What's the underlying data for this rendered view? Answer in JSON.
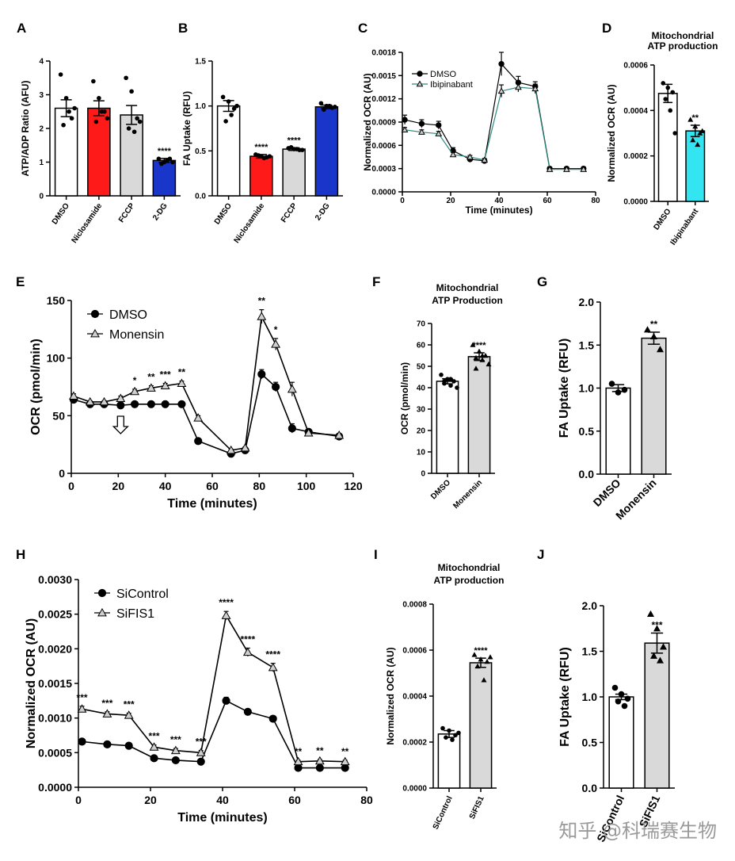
{
  "panel_labels": [
    "A",
    "B",
    "C",
    "D",
    "E",
    "F",
    "G",
    "H",
    "I",
    "J"
  ],
  "watermark": "知乎 @科瑞赛生物",
  "colors": {
    "red": "#ff1a1a",
    "gray": "#d9d9d9",
    "blue": "#1a35c9",
    "cyan": "#33e5f0",
    "teal": "#2a8a80"
  },
  "chart_data": [
    {
      "id": "A",
      "type": "bar",
      "title": "",
      "xlabel": "",
      "ylabel": "ATP/ADP Ratio (AFU)",
      "ylim": [
        0,
        4
      ],
      "yticks": [
        "0",
        "1",
        "2",
        "3",
        "4"
      ],
      "categories": [
        "DMSO",
        "Niclosamide",
        "FCCP",
        "2-DG"
      ],
      "values": [
        2.6,
        2.6,
        2.4,
        1.05
      ],
      "errors": [
        0.25,
        0.22,
        0.28,
        0.06
      ],
      "fills": [
        "#ffffff",
        "#ff1a1a",
        "#d9d9d9",
        "#1a35c9"
      ],
      "annotations": [
        "",
        "",
        "",
        "****"
      ],
      "points": [
        [
          3.6,
          2.9,
          2.3,
          2.1,
          2.5,
          2.6
        ],
        [
          3.4,
          2.9,
          2.5,
          2.2,
          2.5,
          2.3
        ],
        [
          3.5,
          3.1,
          2.3,
          2.0,
          1.9,
          2.2
        ],
        [
          1.1,
          1.0,
          1.1,
          0.95,
          1.05,
          1.0
        ]
      ]
    },
    {
      "id": "B",
      "type": "bar",
      "title": "",
      "xlabel": "",
      "ylabel": "FA Uptake (RFU)",
      "ylim": [
        0,
        1.5
      ],
      "yticks": [
        "0.0",
        "0.5",
        "1.0",
        "1.5"
      ],
      "categories": [
        "DMSO",
        "Niclosamide",
        "FCCP",
        "2-DG"
      ],
      "values": [
        1.0,
        0.44,
        0.52,
        0.99
      ],
      "errors": [
        0.06,
        0.02,
        0.015,
        0.02
      ],
      "fills": [
        "#ffffff",
        "#ff1a1a",
        "#d9d9d9",
        "#1a35c9"
      ],
      "annotations": [
        "",
        "****",
        "****",
        ""
      ],
      "points": [
        [
          1.1,
          1.05,
          0.97,
          0.83,
          0.9,
          1.0
        ],
        [
          0.46,
          0.44,
          0.43,
          0.45,
          0.42,
          0.44
        ],
        [
          0.53,
          0.52,
          0.51,
          0.54,
          0.52,
          0.51
        ],
        [
          1.03,
          1.0,
          0.98,
          0.96,
          1.0,
          0.99
        ]
      ]
    },
    {
      "id": "C",
      "type": "line",
      "title": "",
      "xlabel": "Time (minutes)",
      "ylabel": "Normalized OCR (AU)",
      "xlim": [
        0,
        80
      ],
      "ylim": [
        0,
        0.0018
      ],
      "xticks": [
        "0",
        "20",
        "40",
        "60",
        "80"
      ],
      "yticks": [
        "0.0000",
        "0.0003",
        "0.0006",
        "0.0009",
        "0.0012",
        "0.0015",
        "0.0018"
      ],
      "legend_position": "top-left",
      "series": [
        {
          "name": "DMSO",
          "marker": "circle",
          "x": [
            1,
            8,
            15,
            21,
            28,
            34,
            41,
            48,
            55,
            61,
            68,
            75
          ],
          "y": [
            0.00093,
            0.00088,
            0.00086,
            0.00053,
            0.00042,
            0.0004,
            0.00165,
            0.00141,
            0.00136,
            0.0003,
            0.0003,
            0.0003
          ],
          "err": [
            6e-05,
            5e-05,
            5e-05,
            4e-05,
            2e-05,
            2e-05,
            0.00015,
            8e-05,
            6e-05,
            2e-05,
            2e-05,
            2e-05
          ]
        },
        {
          "name": "Ibipinabant",
          "marker": "triangle",
          "x": [
            1,
            8,
            15,
            21,
            28,
            34,
            41,
            48,
            55,
            61,
            68,
            75
          ],
          "y": [
            0.0008,
            0.00077,
            0.00075,
            0.00048,
            0.00045,
            0.00041,
            0.0013,
            0.00135,
            0.00133,
            0.00029,
            0.00029,
            0.00029
          ],
          "err": [
            3e-05,
            3e-05,
            3e-05,
            3e-05,
            2e-05,
            2e-05,
            8e-05,
            6e-05,
            6e-05,
            2e-05,
            2e-05,
            2e-05
          ]
        }
      ]
    },
    {
      "id": "D",
      "type": "bar",
      "title": "Mitochondrial ATP production",
      "xlabel": "",
      "ylabel": "Normalized OCR (AU)",
      "ylim": [
        0,
        0.0006
      ],
      "yticks": [
        "0.0000",
        "0.0002",
        "0.0004",
        "0.0006"
      ],
      "categories": [
        "DMSO",
        "Ibipinabant"
      ],
      "values": [
        0.000475,
        0.00031
      ],
      "errors": [
        4e-05,
        2.5e-05
      ],
      "fills": [
        "#ffffff",
        "#33e5f0"
      ],
      "annotations": [
        "",
        "**"
      ],
      "points": [
        [
          0.00052,
          0.0005,
          0.00048,
          0.00045,
          0.0004,
          0.0003
        ],
        [
          0.00036,
          0.00033,
          0.0003,
          0.00027,
          0.00025,
          0.00031
        ]
      ]
    },
    {
      "id": "E",
      "type": "line",
      "title": "",
      "xlabel": "Time (minutes)",
      "ylabel": "OCR (pmol/min)",
      "xlim": [
        0,
        120
      ],
      "ylim": [
        0,
        150
      ],
      "xticks": [
        "0",
        "20",
        "40",
        "60",
        "80",
        "100",
        "120"
      ],
      "yticks": [
        "0",
        "50",
        "100",
        "150"
      ],
      "legend_position": "top-left",
      "arrow_at_x": 21,
      "series": [
        {
          "name": "DMSO",
          "marker": "circle",
          "x": [
            1,
            8,
            14,
            21,
            27,
            34,
            40,
            47,
            54,
            68,
            74,
            81,
            87,
            94,
            101,
            114
          ],
          "y": [
            64,
            60,
            60,
            59,
            60,
            60,
            60,
            60,
            28,
            17,
            20,
            86,
            75,
            39,
            36,
            32
          ],
          "err": [
            2,
            1,
            1,
            1,
            1,
            1,
            1,
            1,
            1,
            1,
            1,
            4,
            4,
            4,
            1,
            1
          ]
        },
        {
          "name": "Monensin",
          "marker": "triangle",
          "x": [
            1,
            8,
            14,
            21,
            27,
            34,
            40,
            47,
            54,
            68,
            74,
            81,
            87,
            94,
            101,
            114
          ],
          "y": [
            67,
            62,
            62,
            65,
            71,
            74,
            76,
            78,
            48,
            20,
            22,
            136,
            112,
            73,
            35,
            33
          ],
          "err": [
            2,
            1,
            1,
            2,
            2,
            2,
            2,
            2,
            2,
            1,
            1,
            6,
            5,
            6,
            1,
            1
          ]
        }
      ],
      "annotations": [
        {
          "x": 27,
          "text": "*"
        },
        {
          "x": 34,
          "text": "**"
        },
        {
          "x": 40,
          "text": "***"
        },
        {
          "x": 47,
          "text": "**"
        },
        {
          "x": 81,
          "text": "**"
        },
        {
          "x": 87,
          "text": "*"
        }
      ]
    },
    {
      "id": "F",
      "type": "bar",
      "title": "Mitochondrial ATP Production",
      "xlabel": "",
      "ylabel": "OCR (pmol/min)",
      "ylim": [
        0,
        70
      ],
      "yticks": [
        "0",
        "10",
        "20",
        "30",
        "40",
        "50",
        "60",
        "70"
      ],
      "categories": [
        "DMSO",
        "Monensin"
      ],
      "values": [
        43,
        54.5
      ],
      "errors": [
        1.2,
        1.8
      ],
      "fills": [
        "#ffffff",
        "#d9d9d9"
      ],
      "annotations": [
        "",
        "****"
      ],
      "points": [
        [
          46,
          44,
          43,
          42,
          41,
          40,
          43,
          44
        ],
        [
          60,
          57,
          55,
          54,
          53,
          51,
          49,
          55
        ]
      ]
    },
    {
      "id": "G",
      "type": "bar",
      "title": "",
      "xlabel": "",
      "ylabel": "FA Uptake (RFU)",
      "ylim": [
        0,
        2.0
      ],
      "yticks": [
        "0.0",
        "0.5",
        "1.0",
        "1.5",
        "2.0"
      ],
      "categories": [
        "DMSO",
        "Monensin"
      ],
      "values": [
        1.0,
        1.58
      ],
      "errors": [
        0.04,
        0.07
      ],
      "fills": [
        "#ffffff",
        "#d9d9d9"
      ],
      "annotations": [
        "",
        "**"
      ],
      "points": [
        [
          1.05,
          0.95,
          0.98
        ],
        [
          1.68,
          1.6,
          1.45
        ]
      ]
    },
    {
      "id": "H",
      "type": "line",
      "title": "",
      "xlabel": "Time (minutes)",
      "ylabel": "Normalized OCR (AU)",
      "xlim": [
        0,
        80
      ],
      "ylim": [
        0,
        0.003
      ],
      "xticks": [
        "0",
        "20",
        "40",
        "60",
        "80"
      ],
      "yticks": [
        "0.0000",
        "0.0005",
        "0.0010",
        "0.0015",
        "0.0020",
        "0.0025",
        "0.0030"
      ],
      "legend_position": "top-left",
      "series": [
        {
          "name": "SiControl",
          "marker": "circle",
          "x": [
            1,
            8,
            14,
            21,
            27,
            34,
            41,
            47,
            54,
            61,
            67,
            74
          ],
          "y": [
            0.00066,
            0.00062,
            0.0006,
            0.00042,
            0.00039,
            0.00037,
            0.00125,
            0.00109,
            0.00099,
            0.00028,
            0.00028,
            0.00028
          ],
          "err": [
            2e-05,
            2e-05,
            2e-05,
            2e-05,
            2e-05,
            2e-05,
            5e-05,
            2e-05,
            2e-05,
            2e-05,
            2e-05,
            2e-05
          ]
        },
        {
          "name": "SiFIS1",
          "marker": "triangle",
          "x": [
            1,
            8,
            14,
            21,
            27,
            34,
            41,
            47,
            54,
            61,
            67,
            74
          ],
          "y": [
            0.00113,
            0.00106,
            0.00104,
            0.00058,
            0.00053,
            0.0005,
            0.00248,
            0.00195,
            0.00173,
            0.00037,
            0.00038,
            0.00037
          ],
          "err": [
            4e-05,
            3e-05,
            3e-05,
            3e-05,
            3e-05,
            3e-05,
            6e-05,
            6e-05,
            6e-05,
            2e-05,
            2e-05,
            2e-05
          ]
        }
      ],
      "annotations": [
        {
          "x": 1,
          "text": "***"
        },
        {
          "x": 8,
          "text": "***"
        },
        {
          "x": 14,
          "text": "***"
        },
        {
          "x": 21,
          "text": "***"
        },
        {
          "x": 27,
          "text": "***"
        },
        {
          "x": 34,
          "text": "***"
        },
        {
          "x": 41,
          "text": "****"
        },
        {
          "x": 47,
          "text": "****"
        },
        {
          "x": 54,
          "text": "****"
        },
        {
          "x": 61,
          "text": "**"
        },
        {
          "x": 67,
          "text": "**"
        },
        {
          "x": 74,
          "text": "**"
        }
      ]
    },
    {
      "id": "I",
      "type": "bar",
      "title": "Mitochondrial ATP production",
      "xlabel": "",
      "ylabel": "Normalized OCR (AU)",
      "ylim": [
        0,
        0.0008
      ],
      "yticks": [
        "0.0000",
        "0.0002",
        "0.0004",
        "0.0006",
        "0.0008"
      ],
      "categories": [
        "SiControl",
        "SiFIS1"
      ],
      "values": [
        0.000235,
        0.000545
      ],
      "errors": [
        1.5e-05,
        2e-05
      ],
      "fills": [
        "#ffffff",
        "#d9d9d9"
      ],
      "annotations": [
        "",
        "****"
      ],
      "points": [
        [
          0.00026,
          0.00025,
          0.00023,
          0.00022,
          0.00021,
          0.00024
        ],
        [
          0.00058,
          0.00056,
          0.00055,
          0.00053,
          0.00047,
          0.00057
        ]
      ]
    },
    {
      "id": "J",
      "type": "bar",
      "title": "",
      "xlabel": "",
      "ylabel": "FA Uptake (RFU)",
      "ylim": [
        0,
        2.0
      ],
      "yticks": [
        "0.0",
        "0.5",
        "1.0",
        "1.5",
        "2.0"
      ],
      "categories": [
        "SiControl",
        "SiFIS1"
      ],
      "values": [
        1.0,
        1.59
      ],
      "errors": [
        0.03,
        0.11
      ],
      "fills": [
        "#ffffff",
        "#d9d9d9"
      ],
      "annotations": [
        "",
        "***"
      ],
      "points": [
        [
          1.1,
          1.03,
          0.98,
          0.95,
          0.9
        ],
        [
          1.91,
          1.75,
          1.55,
          1.45,
          1.4
        ]
      ]
    }
  ]
}
